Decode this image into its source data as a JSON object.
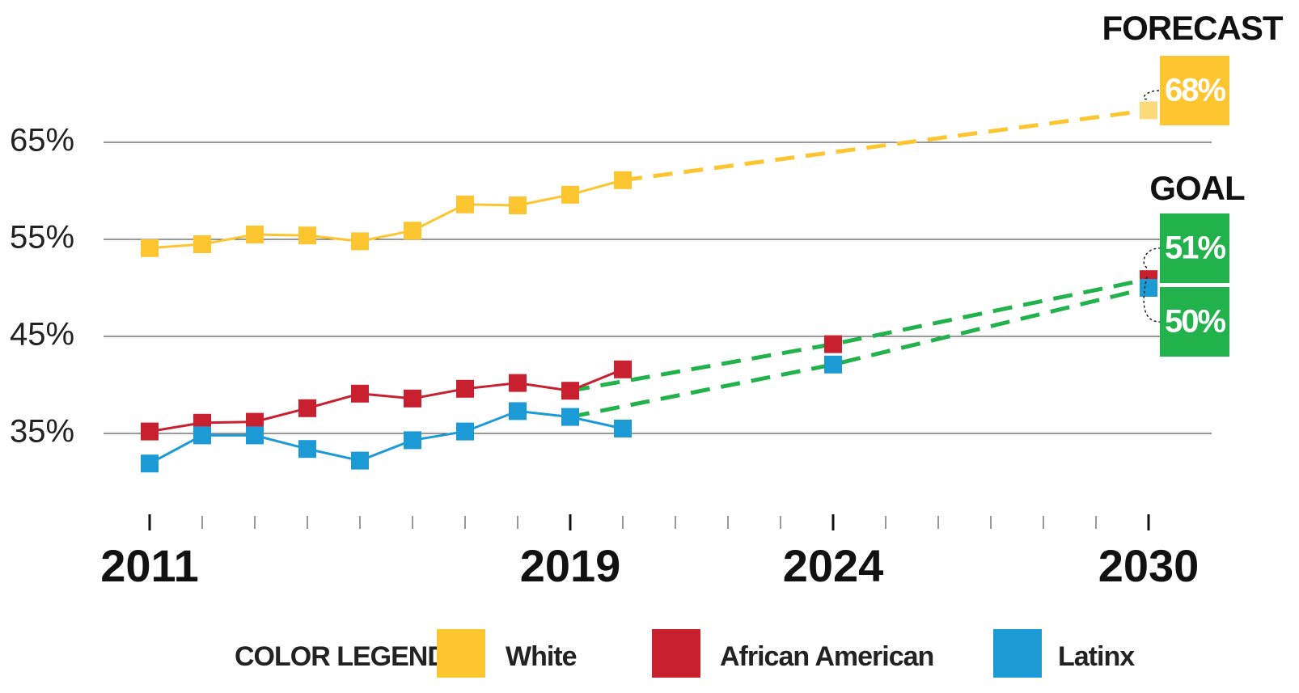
{
  "chart_data": {
    "type": "line",
    "xlim": [
      2010,
      2031.2
    ],
    "ylim": [
      26,
      78
    ],
    "xticks": [
      2011,
      2019,
      2024,
      2030
    ],
    "minor_xticks": [
      2012,
      2013,
      2014,
      2015,
      2016,
      2017,
      2018,
      2020,
      2021,
      2022,
      2023,
      2025,
      2026,
      2027,
      2028,
      2029
    ],
    "yticks": [
      {
        "value": 35,
        "label": "35%"
      },
      {
        "value": 45,
        "label": "45%"
      },
      {
        "value": 55,
        "label": "55%"
      },
      {
        "value": 65,
        "label": "65%"
      }
    ],
    "grid": true,
    "annotations": [
      "FORECAST",
      "GOAL"
    ],
    "legend_title": "COLOR LEGEND",
    "series": [
      {
        "name": "White",
        "color": "#fdc52f",
        "x": [
          2011,
          2012,
          2013,
          2014,
          2015,
          2016,
          2017,
          2018,
          2019,
          2020
        ],
        "values": [
          54.1,
          54.5,
          55.5,
          55.4,
          54.8,
          55.9,
          58.6,
          58.5,
          59.6,
          61.1
        ],
        "projection": {
          "from": 2020,
          "color": "#fdc52f",
          "marker_color": "#fcd97a",
          "x": [
            2030
          ],
          "values": [
            68.3
          ],
          "value_labels": [
            "68%"
          ]
        }
      },
      {
        "name": "African American",
        "color": "#c8202f",
        "x": [
          2011,
          2012,
          2013,
          2014,
          2015,
          2016,
          2017,
          2018,
          2019,
          2020
        ],
        "values": [
          35.2,
          36.1,
          36.2,
          37.6,
          39.1,
          38.6,
          39.6,
          40.2,
          39.4,
          41.6
        ],
        "projection": {
          "from": 2019,
          "color": "#22b24c",
          "marker_color": "#c8202f",
          "x": [
            2024,
            2030
          ],
          "values": [
            44.2,
            50.9
          ],
          "value_labels": [
            null,
            "51%"
          ]
        }
      },
      {
        "name": "Latinx",
        "color": "#1c9ad6",
        "x": [
          2011,
          2012,
          2013,
          2014,
          2015,
          2016,
          2017,
          2018,
          2019,
          2020
        ],
        "values": [
          31.9,
          34.8,
          34.8,
          33.4,
          32.2,
          34.3,
          35.2,
          37.3,
          36.7,
          35.5
        ],
        "projection": {
          "from": 2019,
          "color": "#22b24c",
          "marker_color": "#1c9ad6",
          "x": [
            2024,
            2030
          ],
          "values": [
            42.1,
            50
          ],
          "value_labels": [
            null,
            "50%"
          ]
        }
      }
    ]
  }
}
